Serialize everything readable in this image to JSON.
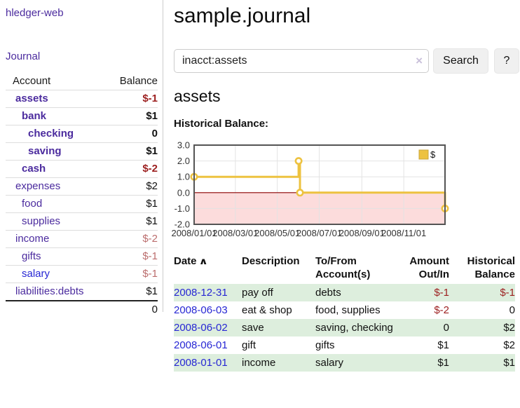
{
  "sidebar": {
    "brand": "hledger-web",
    "nav_journal": "Journal",
    "accounts_table": {
      "col_account": "Account",
      "col_balance": "Balance",
      "rows": [
        {
          "name": "assets",
          "level": 1,
          "bold": true,
          "balance": "$-1",
          "balance_class": "neg-strong"
        },
        {
          "name": "bank",
          "level": 2,
          "bold": true,
          "balance": "$1",
          "balance_class": ""
        },
        {
          "name": "checking",
          "level": 3,
          "bold": true,
          "balance": "0",
          "balance_class": ""
        },
        {
          "name": "saving",
          "level": 3,
          "bold": true,
          "balance": "$1",
          "balance_class": ""
        },
        {
          "name": "cash",
          "level": 2,
          "bold": true,
          "balance": "$-2",
          "balance_class": "neg-strong"
        },
        {
          "name": "expenses",
          "level": 1,
          "bold": false,
          "balance": "$2",
          "balance_class": ""
        },
        {
          "name": "food",
          "level": 2,
          "bold": false,
          "balance": "$1",
          "balance_class": ""
        },
        {
          "name": "supplies",
          "level": 2,
          "bold": false,
          "balance": "$1",
          "balance_class": ""
        },
        {
          "name": "income",
          "level": 1,
          "bold": false,
          "balance": "$-2",
          "balance_class": "neg-muted"
        },
        {
          "name": "gifts",
          "level": 2,
          "bold": false,
          "balance": "$-1",
          "balance_class": "neg-muted"
        },
        {
          "name": "salary",
          "level": 2,
          "bold": false,
          "blue": true,
          "balance": "$-1",
          "balance_class": "neg-muted"
        },
        {
          "name": "liabilities:debts",
          "level": 1,
          "bold": false,
          "balance": "$1",
          "balance_class": ""
        }
      ],
      "total": "0"
    }
  },
  "header": {
    "title": "sample.journal"
  },
  "search": {
    "query": "inacct:assets",
    "clear_icon": "×",
    "search_label": "Search",
    "help_label": "?"
  },
  "account_view": {
    "heading": "assets",
    "chart_label": "Historical Balance:"
  },
  "chart_data": {
    "type": "line",
    "mode": "steps",
    "title": "Historical Balance",
    "series": [
      {
        "name": "$",
        "color": "#edc240",
        "points": [
          {
            "date": "2008-01-01",
            "value": 1
          },
          {
            "date": "2008-06-01",
            "value": 2
          },
          {
            "date": "2008-06-03",
            "value": 0
          },
          {
            "date": "2008-12-31",
            "value": -1
          }
        ]
      }
    ],
    "x_range": [
      "2008-01-01",
      "2008-12-31"
    ],
    "x_tick_labels": [
      "2008/01/01",
      "2008/03/01",
      "2008/05/01",
      "2008/07/01",
      "2008/09/01",
      "2008/11/01"
    ],
    "y_tick_labels": [
      "3.0",
      "2.0",
      "1.0",
      "0.0",
      "-1.0",
      "-2.0"
    ],
    "ylim": [
      -2,
      3
    ],
    "grid": true,
    "legend": {
      "label": "$",
      "position": "top-right"
    },
    "negative_fill": "#fcdcdc",
    "zero_line_color": "#8b0000",
    "grid_color": "#e3e3e3",
    "border_color": "#545454"
  },
  "register": {
    "col_date": "Date",
    "sort_icon": "∧",
    "col_description": "Description",
    "col_accounts": "To/From Account(s)",
    "col_amount": "Amount Out/In",
    "col_balance": "Historical Balance",
    "rows": [
      {
        "date": "2008-12-31",
        "description": "pay off",
        "accounts": "debts",
        "amount": "$-1",
        "amount_class": "neg",
        "balance": "$-1",
        "balance_class": "neg"
      },
      {
        "date": "2008-06-03",
        "description": "eat & shop",
        "accounts": "food, supplies",
        "amount": "$-2",
        "amount_class": "neg",
        "balance": "0",
        "balance_class": ""
      },
      {
        "date": "2008-06-02",
        "description": "save",
        "accounts": "saving, checking",
        "amount": "0",
        "amount_class": "",
        "balance": "$2",
        "balance_class": ""
      },
      {
        "date": "2008-06-01",
        "description": "gift",
        "accounts": "gifts",
        "amount": "$1",
        "amount_class": "",
        "balance": "$2",
        "balance_class": ""
      },
      {
        "date": "2008-01-01",
        "description": "income",
        "accounts": "salary",
        "amount": "$1",
        "amount_class": "",
        "balance": "$1",
        "balance_class": ""
      }
    ]
  },
  "colors": {
    "link_purple": "#4b2b9e",
    "link_blue": "#2727d4",
    "negative_strong": "#9c1f1f",
    "negative_muted": "#bb6d6d",
    "row_stripe_green": "#ddeedd",
    "chart_gold": "#edc240"
  }
}
